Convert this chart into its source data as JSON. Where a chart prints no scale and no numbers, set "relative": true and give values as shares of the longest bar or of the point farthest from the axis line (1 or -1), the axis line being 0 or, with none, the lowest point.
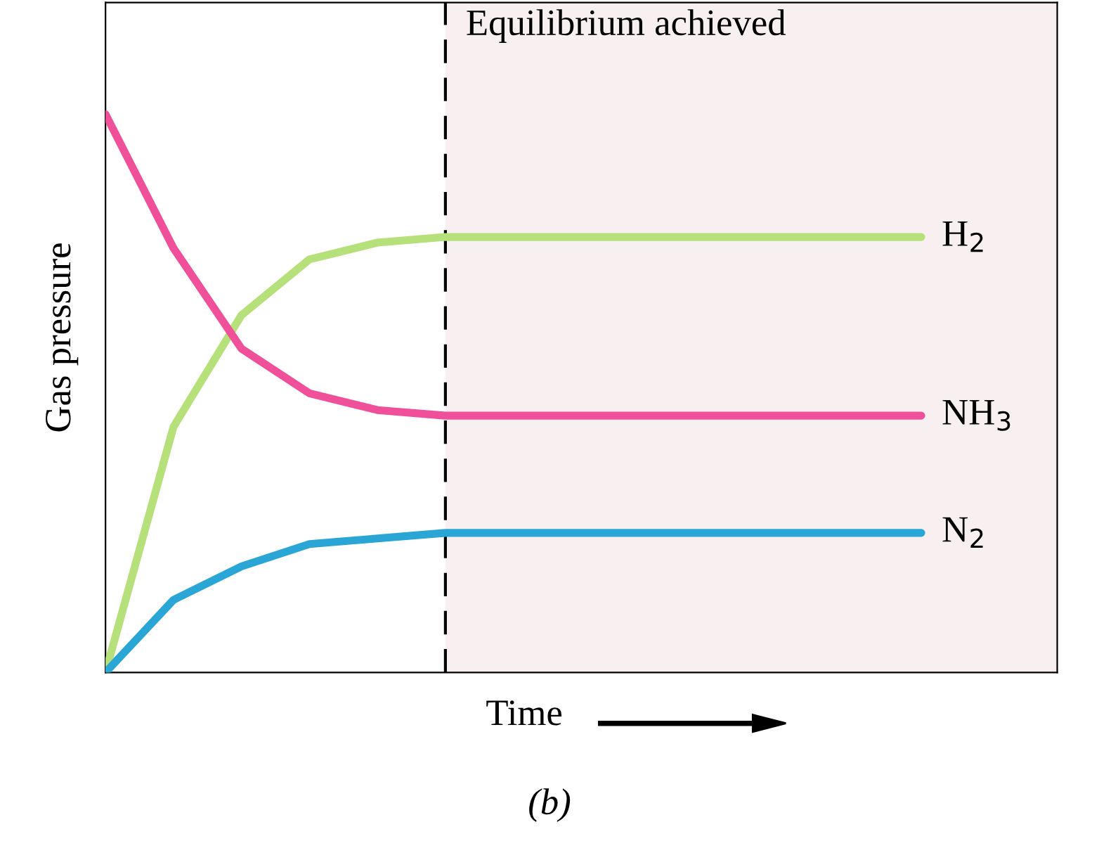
{
  "chart_data": {
    "type": "line",
    "relative": true,
    "xlabel": "Time",
    "ylabel": "Gas pressure",
    "marker": "none",
    "line_style": "solid",
    "categories": [
      null,
      null,
      null,
      null,
      null,
      null,
      null,
      null,
      null,
      null,
      null,
      null,
      null
    ],
    "series": [
      {
        "name": "H$_{2}$",
        "color": "#b5e07a",
        "values": [
          0,
          0.44,
          0.64,
          0.74,
          0.77,
          0.78,
          0.78,
          0.78,
          0.78,
          0.78,
          0.78,
          0.78,
          0.78
        ]
      },
      {
        "name": "NH$_{3}$",
        "color": "#f0509a",
        "values": [
          1,
          0.76,
          0.58,
          0.5,
          0.47,
          0.46,
          0.46,
          0.46,
          0.46,
          0.46,
          0.46,
          0.46,
          0.46
        ]
      },
      {
        "name": "N$_{2}$",
        "color": "#2aa6d6",
        "values": [
          0,
          0.13,
          0.19,
          0.23,
          0.24,
          0.25,
          0.25,
          0.25,
          0.25,
          0.25,
          0.25,
          0.25,
          0.25
        ]
      }
    ],
    "annotations": [
      "Equilibrium achieved",
      "(b)"
    ]
  }
}
